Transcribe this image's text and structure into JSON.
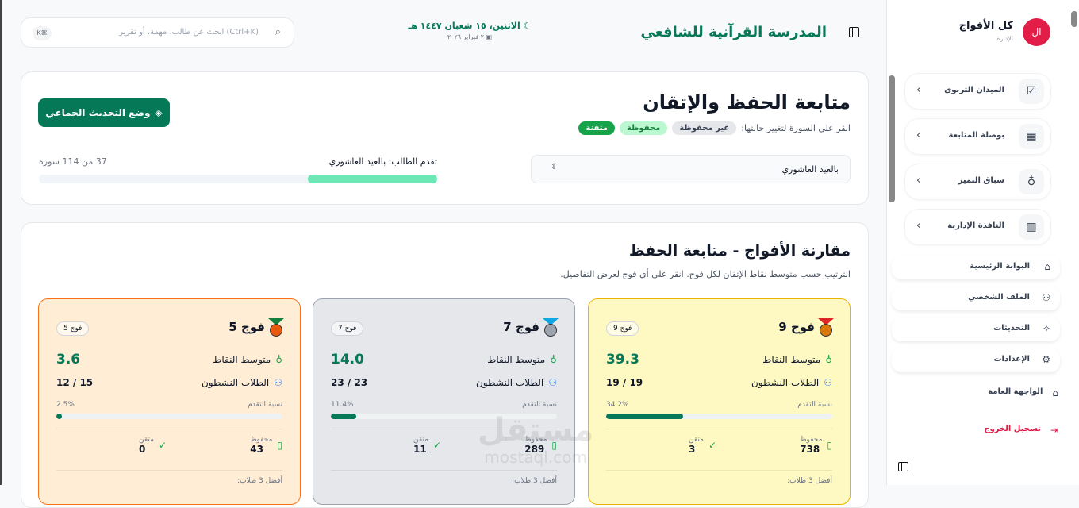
{
  "header": {
    "school_name": "المدرسة القرآنية للشافعي",
    "hijri_date": "الاثنين، ١٥ شعبان ١٤٤٧ هـ",
    "gregorian_date": "٢ فبراير ٢٠٢٦",
    "search_placeholder": "ابحث عن طالب، مهمة، أو تقرير (Ctrl+K)",
    "shortcut": "K⌘"
  },
  "tracking": {
    "title": "متابعة الحفظ والإتقان",
    "hint": "انقر على السورة لتغيير حالتها:",
    "statuses": [
      {
        "label": "غير محفوظة",
        "color": "#e5e7eb"
      },
      {
        "label": "محفوظة",
        "color": "#bbf7d0"
      },
      {
        "label": "متقنة",
        "color": "#16a34a"
      }
    ],
    "bulk_button": "وضع التحديث الجماعي",
    "student_select": "بالعيد العاشوري",
    "progress_label": "تقدم الطالب: بالعيد العاشوري",
    "progress_count": "37 من 114 سورة",
    "progress_fraction": 0.325
  },
  "comparison": {
    "title": "مقارنة الأفواج - متابعة الحفظ",
    "subtitle": "الترتيب حسب متوسط نقاط الإتقان لكل فوج. انقر على أي فوج لعرض التفاصيل.",
    "labels": {
      "avg_points": "متوسط النقاط",
      "active_students": "الطلاب النشطون",
      "progress": "نسبة التقدم",
      "memorized": "محفوظ",
      "mastered": "متقن",
      "top3": "أفضل 3 طلاب:"
    },
    "groups": [
      {
        "name": "فوج 9",
        "tag": "فوج 9",
        "avg": "39.3",
        "active": "19 / 19",
        "progress_text": "34.2%",
        "progress": 34.2,
        "memorized": "738",
        "mastered": "3",
        "bg": "#fef9c3",
        "border": "#eab308",
        "medal": "gold"
      },
      {
        "name": "فوج 7",
        "tag": "فوج 7",
        "avg": "14.0",
        "active": "23 / 23",
        "progress_text": "11.4%",
        "progress": 11.4,
        "memorized": "289",
        "mastered": "11",
        "bg": "#e5e7eb",
        "border": "#9ca3af",
        "medal": "silver"
      },
      {
        "name": "فوج 5",
        "tag": "فوج 5",
        "avg": "3.6",
        "active": "15 / 12",
        "progress_text": "2.5%",
        "progress": 2.5,
        "memorized": "43",
        "mastered": "0",
        "bg": "#ffedd5",
        "border": "#f97316",
        "medal": "bronze"
      }
    ]
  },
  "watermark": {
    "arabic": "مستقل",
    "latin": "mostaql.com"
  },
  "sidebar": {
    "user_name": "كل الأفواج",
    "user_role": "الإدارة",
    "avatar": "ال",
    "avatar_color": "#e11d48",
    "sections": [
      {
        "label": "الميدان التربوي",
        "icon": "clipboard-check-icon"
      },
      {
        "label": "بوصلة المتابعة",
        "icon": "calendar-icon"
      },
      {
        "label": "سباق التميز",
        "icon": "award-icon"
      },
      {
        "label": "النافذة الإدارية",
        "icon": "bar-chart-icon"
      }
    ],
    "links": [
      {
        "label": "البوابة الرئيسية",
        "icon": "home-icon"
      },
      {
        "label": "الملف الشخصي",
        "icon": "user-icon"
      },
      {
        "label": "التحديثات",
        "icon": "sparkles-icon"
      },
      {
        "label": "الإعدادات",
        "icon": "gear-icon"
      }
    ],
    "public_link": "الواجهة العامة",
    "logout": "تسجيل الخروج"
  }
}
